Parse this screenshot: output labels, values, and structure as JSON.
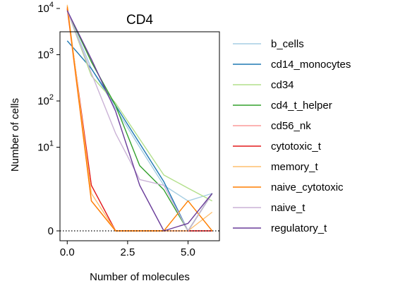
{
  "chart_data": {
    "type": "line",
    "title": "CD4",
    "xlabel": "Number of molecules",
    "ylabel": "Number of cells",
    "x": [
      0,
      1,
      2,
      3,
      4,
      5,
      6
    ],
    "xlim": [
      -0.3,
      6.3
    ],
    "xticks": [
      {
        "value": 0,
        "label": "0.0"
      },
      {
        "value": 2.5,
        "label": "2.5"
      },
      {
        "value": 5,
        "label": "5.0"
      }
    ],
    "yscale": "symlog",
    "yticks": [
      {
        "value": 0,
        "label": "0",
        "exp": ""
      },
      {
        "value": 10,
        "label": "10",
        "exp": "1"
      },
      {
        "value": 100,
        "label": "10",
        "exp": "2"
      },
      {
        "value": 1000,
        "label": "10",
        "exp": "3"
      },
      {
        "value": 10000,
        "label": "10",
        "exp": "4"
      }
    ],
    "baseline": {
      "value": 0,
      "style": "dotted",
      "color": "#000000"
    },
    "grid": false,
    "legend_position": "outside-right",
    "series": [
      {
        "name": "b_cells",
        "color": "#a6cee3",
        "values": [
          9000,
          500,
          70,
          10,
          1.5,
          0.8,
          1
        ]
      },
      {
        "name": "cd14_monocytes",
        "color": "#1f78b4",
        "values": [
          2000,
          500,
          80,
          12,
          1.8,
          0,
          1
        ]
      },
      {
        "name": "cd34",
        "color": "#b2df8a",
        "values": [
          9000,
          350,
          90,
          15,
          2.5,
          1.3,
          0.8
        ]
      },
      {
        "name": "cd4_t_helper",
        "color": "#33a02c",
        "values": [
          9000,
          700,
          80,
          4,
          1.2,
          0,
          1
        ]
      },
      {
        "name": "cd56_nk",
        "color": "#fb9a99",
        "values": [
          10000,
          0.8,
          0,
          0,
          0,
          0,
          0
        ]
      },
      {
        "name": "cytotoxic_t",
        "color": "#e31a1c",
        "values": [
          10000,
          1.5,
          0,
          0,
          0,
          0,
          0
        ]
      },
      {
        "name": "memory_t",
        "color": "#fdbf6f",
        "values": [
          12000,
          1,
          0,
          0,
          0,
          0,
          0.5
        ]
      },
      {
        "name": "naive_cytotoxic",
        "color": "#ff7f00",
        "values": [
          11000,
          0.8,
          0,
          0,
          0,
          0.8,
          0
        ]
      },
      {
        "name": "naive_t",
        "color": "#cab2d6",
        "values": [
          9000,
          400,
          20,
          2,
          1.5,
          0,
          1
        ]
      },
      {
        "name": "regulatory_t",
        "color": "#6a3d9a",
        "values": [
          9000,
          800,
          60,
          1.5,
          0,
          0.2,
          1
        ]
      }
    ]
  }
}
